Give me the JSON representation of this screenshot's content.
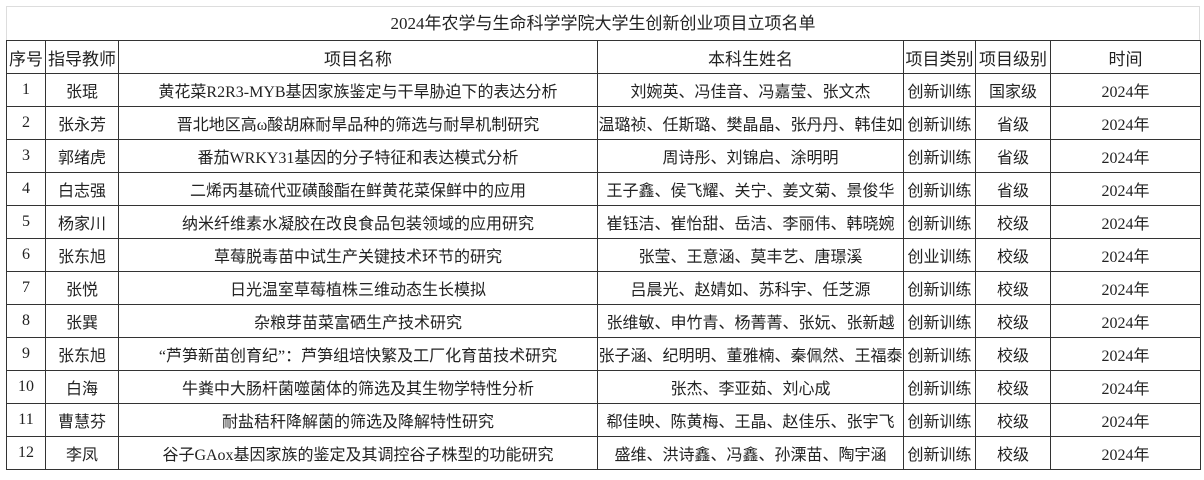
{
  "title": "2024年农学与生命科学学院大学生创新创业项目立项名单",
  "headers": [
    "序号",
    "指导教师",
    "项目名称",
    "本科生姓名",
    "项目类别",
    "项目级别",
    "时间"
  ],
  "rows": [
    {
      "no": "1",
      "teacher": "张琨",
      "project": "黄花菜R2R3-MYB基因家族鉴定与干旱胁迫下的表达分析",
      "students": "刘婉英、冯佳音、冯嘉莹、张文杰",
      "category": "创新训练",
      "level": "国家级",
      "year": "2024年"
    },
    {
      "no": "2",
      "teacher": "张永芳",
      "project": "晋北地区高ω酸胡麻耐旱品种的筛选与耐旱机制研究",
      "students": "温璐祯、任斯璐、樊晶晶、张丹丹、韩佳如",
      "category": "创新训练",
      "level": "省级",
      "year": "2024年"
    },
    {
      "no": "3",
      "teacher": "郭绪虎",
      "project": "番茄WRKY31基因的分子特征和表达模式分析",
      "students": "周诗彤、刘锦启、涂明明",
      "category": "创新训练",
      "level": "省级",
      "year": "2024年"
    },
    {
      "no": "4",
      "teacher": "白志强",
      "project": "二烯丙基硫代亚磺酸酯在鲜黄花菜保鲜中的应用",
      "students": "王子鑫、侯飞耀、关宁、姜文菊、景俊华",
      "category": "创新训练",
      "level": "省级",
      "year": "2024年"
    },
    {
      "no": "5",
      "teacher": "杨家川",
      "project": "纳米纤维素水凝胶在改良食品包装领域的应用研究",
      "students": "崔钰洁、崔怡甜、岳洁、李丽伟、韩晓婉",
      "category": "创新训练",
      "level": "校级",
      "year": "2024年"
    },
    {
      "no": "6",
      "teacher": "张东旭",
      "project": "草莓脱毒苗中试生产关键技术环节的研究",
      "students": "张莹、王意涵、莫丰艺、唐璟溪",
      "category": "创业训练",
      "level": "校级",
      "year": "2024年"
    },
    {
      "no": "7",
      "teacher": "张悦",
      "project": "日光温室草莓植株三维动态生长模拟",
      "students": "吕晨光、赵婧如、苏科宇、任芝源",
      "category": "创新训练",
      "level": "校级",
      "year": "2024年"
    },
    {
      "no": "8",
      "teacher": "张巽",
      "project": "杂粮芽苗菜富硒生产技术研究",
      "students": "张维敏、申竹青、杨菁菁、张妧、张新越",
      "category": "创新训练",
      "level": "校级",
      "year": "2024年"
    },
    {
      "no": "9",
      "teacher": "张东旭",
      "project": "“芦笋新苗创育纪”：芦笋组培快繁及工厂化育苗技术研究",
      "students": "张子涵、纪明明、董雅楠、秦佩然、王福泰",
      "category": "创新训练",
      "level": "校级",
      "year": "2024年"
    },
    {
      "no": "10",
      "teacher": "白海",
      "project": "牛粪中大肠杆菌噬菌体的筛选及其生物学特性分析",
      "students": "张杰、李亚茹、刘心成",
      "category": "创新训练",
      "level": "校级",
      "year": "2024年"
    },
    {
      "no": "11",
      "teacher": "曹慧芬",
      "project": "耐盐秸秆降解菌的筛选及降解特性研究",
      "students": "郗佳映、陈黄梅、王晶、赵佳乐、张宇飞",
      "category": "创新训练",
      "level": "校级",
      "year": "2024年"
    },
    {
      "no": "12",
      "teacher": "李凤",
      "project": "谷子GAox基因家族的鉴定及其调控谷子株型的功能研究",
      "students": "盛维、洪诗鑫、冯鑫、孙溧苗、陶宇涵",
      "category": "创新训练",
      "level": "校级",
      "year": "2024年"
    }
  ]
}
